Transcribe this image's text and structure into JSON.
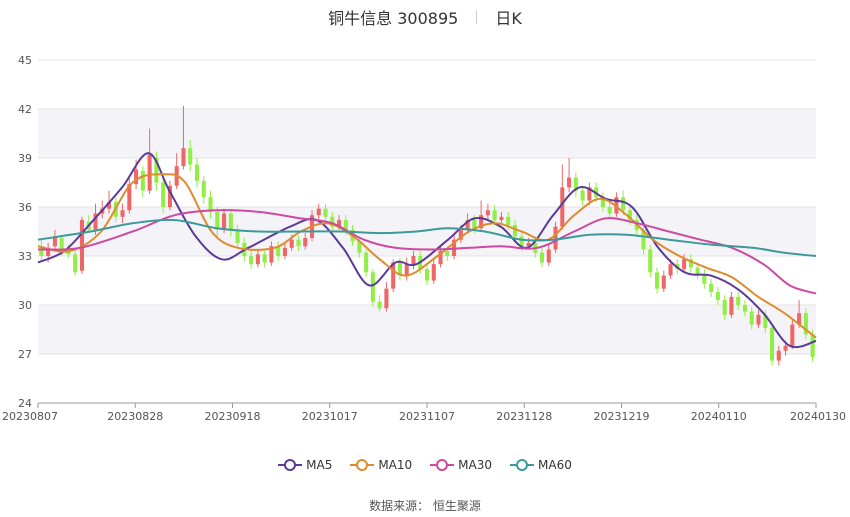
{
  "header": {
    "title": "铜牛信息 300895",
    "period": "日K"
  },
  "source_label": "数据来源：  恒生聚源",
  "chart_data": {
    "type": "candlestick",
    "title": "铜牛信息 300895 日K",
    "yticks": [
      24,
      27,
      30,
      33,
      36,
      39,
      42,
      45
    ],
    "ylim": [
      24,
      45
    ],
    "xticks": [
      "20230807",
      "20230828",
      "20230918",
      "20231017",
      "20231107",
      "20231128",
      "20231219",
      "20240110",
      "20240130"
    ],
    "grid": true,
    "legend_position": "bottom",
    "up_color": "#ee6666",
    "down_color": "#91ee44",
    "series": [
      {
        "name": "MA5",
        "color": "#5b3a99",
        "values": [
          [
            0,
            32.6
          ],
          [
            5,
            33.3
          ],
          [
            10,
            35.0
          ],
          [
            16,
            37.2
          ],
          [
            21,
            39.3
          ],
          [
            25,
            37.0
          ],
          [
            30,
            34.2
          ],
          [
            35,
            32.8
          ],
          [
            40,
            33.5
          ],
          [
            48,
            34.8
          ],
          [
            53,
            35.2
          ],
          [
            58,
            33.5
          ],
          [
            63,
            31.2
          ],
          [
            68,
            32.6
          ],
          [
            72,
            32.5
          ],
          [
            78,
            34.0
          ],
          [
            83,
            35.3
          ],
          [
            88,
            34.8
          ],
          [
            93,
            33.5
          ],
          [
            98,
            35.5
          ],
          [
            103,
            37.2
          ],
          [
            108,
            36.5
          ],
          [
            113,
            36.0
          ],
          [
            118,
            33.5
          ],
          [
            123,
            32.0
          ],
          [
            128,
            31.8
          ],
          [
            133,
            31.0
          ],
          [
            138,
            29.5
          ],
          [
            143,
            27.5
          ],
          [
            148,
            27.8
          ]
        ]
      },
      {
        "name": "MA10",
        "color": "#e08a2e",
        "values": [
          [
            0,
            33.6
          ],
          [
            6,
            33.3
          ],
          [
            12,
            34.5
          ],
          [
            18,
            37.5
          ],
          [
            24,
            38.0
          ],
          [
            28,
            37.5
          ],
          [
            33,
            34.5
          ],
          [
            38,
            33.5
          ],
          [
            45,
            33.5
          ],
          [
            50,
            34.5
          ],
          [
            55,
            35.0
          ],
          [
            60,
            34.2
          ],
          [
            65,
            32.8
          ],
          [
            70,
            31.8
          ],
          [
            76,
            33.0
          ],
          [
            82,
            34.5
          ],
          [
            87,
            35.0
          ],
          [
            92,
            34.5
          ],
          [
            97,
            34.0
          ],
          [
            102,
            35.5
          ],
          [
            107,
            36.5
          ],
          [
            112,
            35.5
          ],
          [
            117,
            34.0
          ],
          [
            122,
            33.0
          ],
          [
            127,
            32.3
          ],
          [
            132,
            31.7
          ],
          [
            137,
            30.5
          ],
          [
            142,
            29.5
          ],
          [
            148,
            28.0
          ]
        ]
      },
      {
        "name": "MA30",
        "color": "#cc4aa0",
        "values": [
          [
            0,
            33.4
          ],
          [
            8,
            33.5
          ],
          [
            18,
            34.5
          ],
          [
            26,
            35.5
          ],
          [
            34,
            35.8
          ],
          [
            42,
            35.7
          ],
          [
            50,
            35.3
          ],
          [
            56,
            35.0
          ],
          [
            62,
            34.0
          ],
          [
            68,
            33.5
          ],
          [
            75,
            33.4
          ],
          [
            82,
            33.5
          ],
          [
            88,
            33.6
          ],
          [
            95,
            33.5
          ],
          [
            102,
            34.5
          ],
          [
            108,
            35.3
          ],
          [
            114,
            35.0
          ],
          [
            120,
            34.5
          ],
          [
            126,
            34.0
          ],
          [
            132,
            33.5
          ],
          [
            138,
            32.5
          ],
          [
            143,
            31.2
          ],
          [
            148,
            30.7
          ]
        ]
      },
      {
        "name": "MA60",
        "color": "#3d9a9a",
        "values": [
          [
            0,
            34.0
          ],
          [
            10,
            34.5
          ],
          [
            18,
            35.0
          ],
          [
            26,
            35.2
          ],
          [
            34,
            34.7
          ],
          [
            42,
            34.5
          ],
          [
            50,
            34.5
          ],
          [
            58,
            34.5
          ],
          [
            65,
            34.4
          ],
          [
            72,
            34.5
          ],
          [
            78,
            34.7
          ],
          [
            85,
            34.5
          ],
          [
            92,
            34.0
          ],
          [
            98,
            34.0
          ],
          [
            105,
            34.3
          ],
          [
            112,
            34.3
          ],
          [
            120,
            34.0
          ],
          [
            128,
            33.7
          ],
          [
            136,
            33.5
          ],
          [
            142,
            33.2
          ],
          [
            148,
            33.0
          ]
        ]
      }
    ],
    "candles": [
      [
        33.6,
        33.0,
        34.0,
        32.7
      ],
      [
        33.0,
        33.5,
        33.8,
        32.6
      ],
      [
        33.6,
        34.2,
        34.6,
        33.3
      ],
      [
        34.1,
        33.3,
        34.3,
        33.0
      ],
      [
        33.3,
        33.1,
        33.7,
        32.9
      ],
      [
        33.1,
        32.0,
        33.4,
        31.8
      ],
      [
        32.1,
        35.2,
        35.4,
        31.9
      ],
      [
        35.1,
        34.6,
        35.5,
        34.4
      ],
      [
        34.6,
        35.6,
        36.2,
        34.3
      ],
      [
        35.6,
        35.9,
        36.4,
        35.3
      ],
      [
        35.9,
        36.3,
        37.0,
        35.6
      ],
      [
        36.3,
        35.4,
        36.6,
        35.1
      ],
      [
        35.4,
        35.8,
        36.2,
        35.0
      ],
      [
        35.8,
        37.4,
        37.8,
        35.6
      ],
      [
        37.4,
        38.3,
        38.9,
        37.1
      ],
      [
        38.2,
        37.0,
        38.5,
        36.6
      ],
      [
        37.0,
        39.2,
        40.8,
        36.8
      ],
      [
        39.0,
        37.5,
        39.4,
        37.0
      ],
      [
        37.5,
        36.0,
        37.8,
        35.6
      ],
      [
        36.0,
        37.3,
        37.6,
        35.8
      ],
      [
        37.3,
        38.5,
        39.3,
        37.1
      ],
      [
        38.5,
        39.6,
        42.2,
        38.3
      ],
      [
        39.6,
        38.6,
        40.1,
        38.2
      ],
      [
        38.6,
        37.6,
        39.0,
        37.2
      ],
      [
        37.6,
        36.6,
        37.9,
        36.2
      ],
      [
        36.6,
        35.7,
        37.0,
        35.3
      ],
      [
        35.7,
        34.6,
        36.0,
        34.2
      ],
      [
        34.6,
        35.6,
        35.9,
        34.4
      ],
      [
        35.6,
        34.6,
        35.9,
        34.2
      ],
      [
        34.6,
        33.8,
        34.9,
        33.5
      ],
      [
        33.8,
        33.0,
        34.1,
        32.7
      ],
      [
        33.0,
        32.5,
        33.3,
        32.2
      ],
      [
        32.5,
        33.1,
        33.4,
        32.3
      ],
      [
        33.1,
        32.6,
        33.3,
        32.3
      ],
      [
        32.6,
        33.6,
        33.9,
        32.4
      ],
      [
        33.6,
        33.0,
        33.9,
        32.7
      ],
      [
        33.0,
        33.5,
        33.8,
        32.8
      ],
      [
        33.5,
        34.0,
        34.3,
        33.3
      ],
      [
        34.0,
        33.6,
        34.3,
        33.3
      ],
      [
        33.6,
        34.1,
        34.4,
        33.4
      ],
      [
        34.1,
        35.5,
        35.8,
        33.9
      ],
      [
        35.5,
        35.9,
        36.2,
        35.2
      ],
      [
        35.9,
        35.4,
        36.2,
        35.1
      ],
      [
        35.4,
        34.8,
        35.7,
        34.5
      ],
      [
        34.8,
        35.2,
        35.5,
        34.6
      ],
      [
        35.2,
        34.6,
        35.5,
        34.3
      ],
      [
        34.6,
        33.9,
        34.9,
        33.6
      ],
      [
        33.9,
        33.2,
        34.2,
        32.9
      ],
      [
        33.2,
        32.0,
        33.4,
        31.7
      ],
      [
        32.0,
        30.2,
        32.2,
        29.9
      ],
      [
        30.2,
        29.8,
        30.6,
        29.6
      ],
      [
        29.8,
        31.0,
        31.4,
        29.6
      ],
      [
        31.0,
        32.6,
        32.8,
        30.8
      ],
      [
        32.6,
        31.8,
        32.9,
        31.5
      ],
      [
        31.8,
        32.5,
        32.9,
        31.5
      ],
      [
        32.5,
        33.0,
        33.3,
        32.2
      ],
      [
        33.0,
        32.2,
        33.3,
        31.9
      ],
      [
        32.2,
        31.5,
        32.5,
        31.2
      ],
      [
        31.5,
        32.5,
        32.8,
        31.3
      ],
      [
        32.5,
        33.3,
        33.6,
        32.3
      ],
      [
        33.3,
        33.0,
        33.6,
        32.7
      ],
      [
        33.0,
        34.0,
        34.3,
        32.8
      ],
      [
        34.0,
        34.6,
        34.9,
        33.8
      ],
      [
        34.6,
        35.2,
        35.6,
        34.4
      ],
      [
        35.2,
        34.7,
        35.5,
        34.4
      ],
      [
        34.7,
        35.5,
        36.4,
        34.5
      ],
      [
        35.5,
        35.8,
        36.2,
        35.2
      ],
      [
        35.8,
        35.2,
        36.1,
        34.9
      ],
      [
        35.2,
        35.4,
        35.7,
        35.0
      ],
      [
        35.4,
        34.9,
        35.7,
        34.6
      ],
      [
        34.9,
        34.2,
        35.2,
        33.9
      ],
      [
        34.2,
        33.6,
        34.5,
        33.3
      ],
      [
        33.6,
        33.8,
        34.1,
        33.4
      ],
      [
        33.8,
        33.2,
        34.1,
        32.9
      ],
      [
        33.2,
        32.6,
        33.5,
        32.3
      ],
      [
        32.6,
        33.4,
        33.7,
        32.4
      ],
      [
        33.4,
        34.8,
        35.1,
        33.2
      ],
      [
        34.8,
        37.2,
        38.6,
        34.6
      ],
      [
        37.2,
        37.8,
        39.0,
        36.9
      ],
      [
        37.8,
        37.0,
        38.1,
        36.6
      ],
      [
        37.0,
        36.4,
        37.3,
        36.1
      ],
      [
        36.4,
        37.2,
        37.5,
        36.1
      ],
      [
        37.2,
        36.6,
        37.5,
        36.3
      ],
      [
        36.6,
        36.0,
        36.9,
        35.7
      ],
      [
        36.0,
        35.6,
        36.3,
        35.3
      ],
      [
        35.6,
        36.6,
        36.9,
        35.4
      ],
      [
        36.6,
        35.8,
        37.0,
        35.5
      ],
      [
        35.8,
        35.2,
        36.1,
        34.9
      ],
      [
        35.2,
        34.6,
        35.5,
        34.3
      ],
      [
        34.6,
        33.4,
        34.9,
        33.1
      ],
      [
        33.4,
        32.0,
        33.7,
        31.7
      ],
      [
        32.0,
        31.0,
        32.3,
        30.7
      ],
      [
        31.0,
        31.8,
        32.1,
        30.8
      ],
      [
        31.8,
        32.5,
        32.8,
        31.6
      ],
      [
        32.5,
        32.2,
        32.8,
        31.9
      ],
      [
        32.2,
        32.8,
        33.1,
        32.0
      ],
      [
        32.8,
        32.3,
        33.1,
        32.0
      ],
      [
        32.3,
        31.9,
        32.6,
        31.6
      ],
      [
        31.9,
        31.3,
        32.2,
        31.0
      ],
      [
        31.3,
        30.8,
        31.6,
        30.5
      ],
      [
        30.8,
        30.3,
        31.1,
        30.0
      ],
      [
        30.3,
        29.4,
        30.6,
        29.1
      ],
      [
        29.4,
        30.5,
        30.8,
        29.2
      ],
      [
        30.5,
        30.0,
        30.8,
        29.7
      ],
      [
        30.0,
        29.6,
        30.3,
        29.3
      ],
      [
        29.6,
        28.8,
        29.9,
        28.5
      ],
      [
        28.8,
        29.4,
        29.7,
        28.6
      ],
      [
        29.4,
        28.6,
        29.7,
        28.3
      ],
      [
        28.6,
        26.6,
        28.9,
        26.3
      ],
      [
        26.6,
        27.2,
        27.5,
        26.3
      ],
      [
        27.2,
        27.5,
        27.8,
        26.9
      ],
      [
        27.5,
        28.8,
        29.1,
        27.3
      ],
      [
        28.8,
        29.5,
        30.3,
        28.6
      ],
      [
        29.5,
        28.2,
        29.8,
        27.9
      ],
      [
        28.2,
        26.8,
        28.5,
        26.5
      ]
    ]
  },
  "legend": [
    {
      "name": "MA5",
      "color": "#5b3a99"
    },
    {
      "name": "MA10",
      "color": "#e08a2e"
    },
    {
      "name": "MA30",
      "color": "#cc4aa0"
    },
    {
      "name": "MA60",
      "color": "#3d9a9a"
    }
  ]
}
